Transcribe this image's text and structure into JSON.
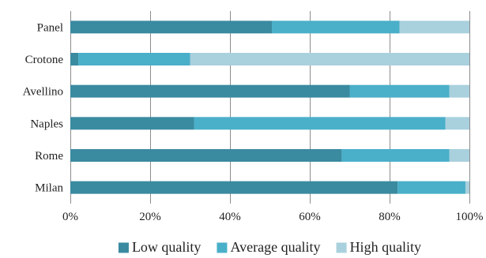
{
  "chart_data": {
    "type": "bar",
    "orientation": "horizontal",
    "stacked": "percent",
    "categories": [
      "Panel",
      "Crotone",
      "Avellino",
      "Naples",
      "Rome",
      "Milan"
    ],
    "series": [
      {
        "name": "Low quality",
        "color": "#3a8aa0",
        "values": [
          50.5,
          2,
          70,
          31,
          68,
          82
        ]
      },
      {
        "name": "Average quality",
        "color": "#4aafc9",
        "values": [
          32,
          28,
          25,
          63,
          27,
          17
        ]
      },
      {
        "name": "High quality",
        "color": "#a9d0dd",
        "values": [
          17.5,
          70,
          5,
          6,
          5,
          1
        ]
      }
    ],
    "xlim": [
      0,
      100
    ],
    "x_ticks": [
      "0%",
      "20%",
      "40%",
      "60%",
      "80%",
      "100%"
    ],
    "grid": "vertical",
    "legend": "bottom",
    "title": "",
    "xlabel": "",
    "ylabel": ""
  }
}
